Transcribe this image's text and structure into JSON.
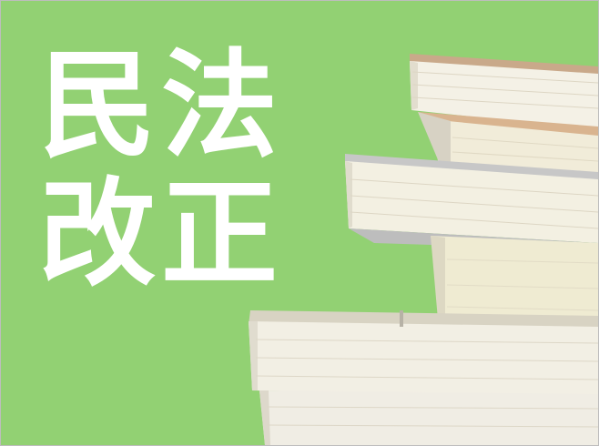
{
  "title": {
    "line1": "民法",
    "line2": "改正"
  },
  "colors": {
    "background": "#92d173",
    "text": "#ffffff",
    "page": "#f4f1e6",
    "page_shadow": "#e2ddce",
    "spine_edge": "#c9a98a"
  },
  "image": {
    "subject": "stack-of-books-icon"
  }
}
